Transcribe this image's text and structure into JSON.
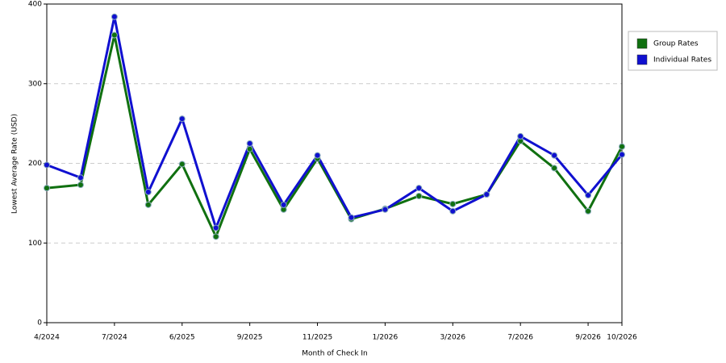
{
  "chart_data": {
    "type": "line",
    "x_label": "Month of Check In",
    "y_label": "Lowest Average Rate (USD)",
    "categories": [
      "4/2024",
      null,
      "7/2024",
      null,
      "6/2025",
      null,
      "9/2025",
      null,
      "11/2025",
      null,
      "1/2026",
      null,
      "3/2026",
      null,
      "7/2026",
      null,
      "9/2026",
      "10/2026"
    ],
    "series": [
      {
        "name": "Group Rates",
        "color": "#107010",
        "values": [
          169,
          173,
          361,
          148,
          199,
          108,
          218,
          142,
          206,
          130,
          143,
          159,
          149,
          161,
          228,
          194,
          140,
          221
        ]
      },
      {
        "name": "Individual Rates",
        "color": "#1010d0",
        "values": [
          198,
          182,
          384,
          164,
          256,
          119,
          225,
          148,
          210,
          132,
          142,
          169,
          140,
          161,
          234,
          210,
          160,
          211
        ]
      }
    ],
    "ylim": [
      0,
      400
    ],
    "yticks": [
      0,
      100,
      200,
      300,
      400
    ],
    "grid": true,
    "legend": "right"
  }
}
